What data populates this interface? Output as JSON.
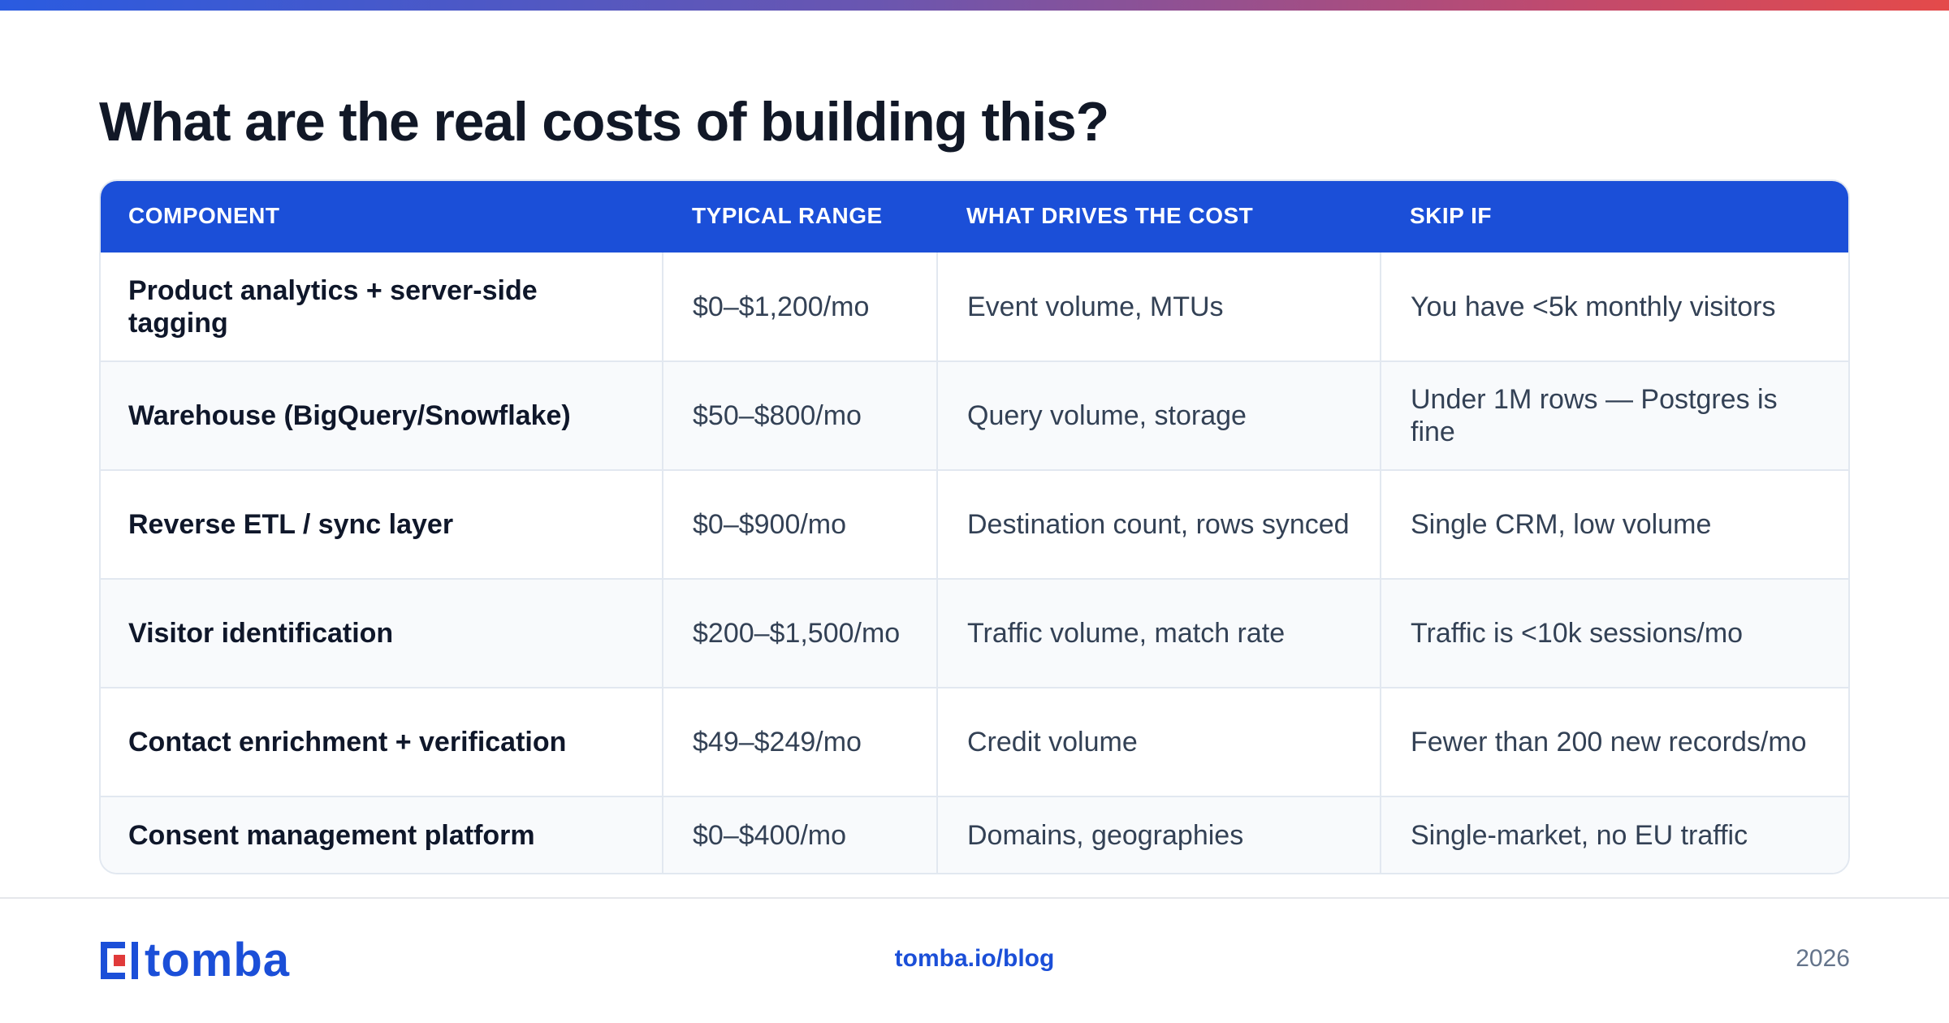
{
  "title": "What are the real costs of building this?",
  "colors": {
    "header_bg": "#1b4fd8",
    "brand_blue": "#1b4fd8",
    "brand_red": "#e03a3a",
    "alt_row": "#f8fafc"
  },
  "table": {
    "headers": [
      "COMPONENT",
      "TYPICAL RANGE",
      "WHAT DRIVES THE COST",
      "SKIP IF"
    ],
    "rows": [
      {
        "component": "Product analytics + server-side tagging",
        "range": "$0–$1,200/mo",
        "drivers": "Event volume, MTUs",
        "skip": "You have <5k monthly visitors"
      },
      {
        "component": "Warehouse (BigQuery/Snowflake)",
        "range": "$50–$800/mo",
        "drivers": "Query volume, storage",
        "skip": "Under 1M rows — Postgres is fine"
      },
      {
        "component": "Reverse ETL / sync layer",
        "range": "$0–$900/mo",
        "drivers": "Destination count, rows synced",
        "skip": "Single CRM, low volume"
      },
      {
        "component": "Visitor identification",
        "range": "$200–$1,500/mo",
        "drivers": "Traffic volume, match rate",
        "skip": "Traffic is <10k sessions/mo"
      },
      {
        "component": "Contact enrichment + verification",
        "range": "$49–$249/mo",
        "drivers": "Credit volume",
        "skip": "Fewer than 200 new records/mo"
      },
      {
        "component": "Consent management platform",
        "range": "$0–$400/mo",
        "drivers": "Domains, geographies",
        "skip": "Single-market, no EU traffic"
      }
    ]
  },
  "footer": {
    "logo_text": "tomba",
    "logo_icon": "tomba-logo-icon",
    "link": "tomba.io/blog",
    "year": "2026"
  }
}
